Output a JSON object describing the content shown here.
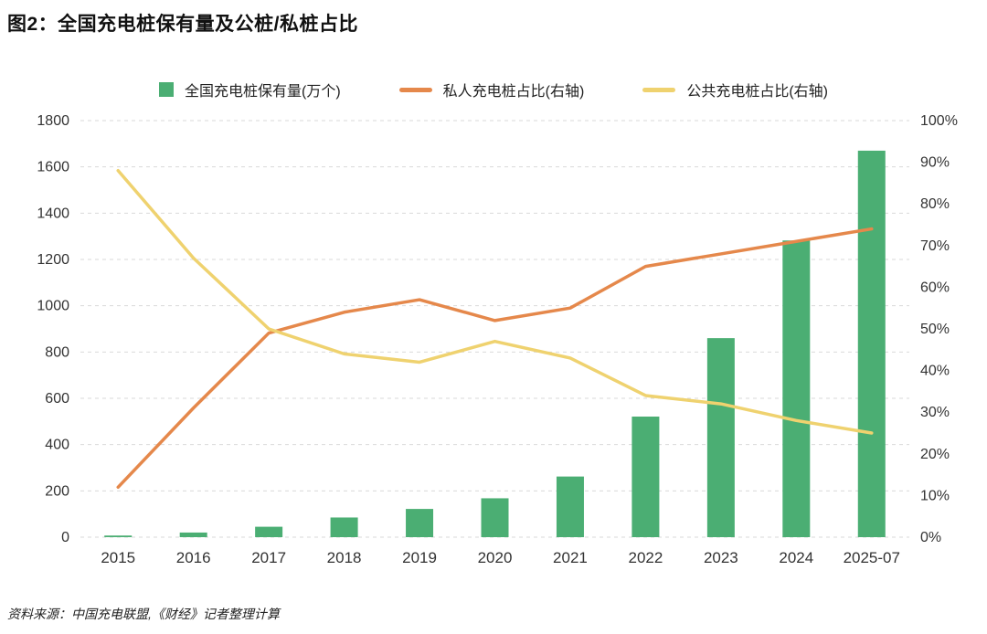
{
  "title": "图2：全国充电桩保有量及公桩/私桩占比",
  "source": "资料来源：中国充电联盟,《财经》记者整理计算",
  "colors": {
    "bar": "#4BAE73",
    "private_line": "#E5884B",
    "public_line": "#EFD26F",
    "grid": "#D9D9D9",
    "axis_text": "#333333",
    "title_text": "#111111"
  },
  "legend": [
    {
      "label": "全国充电桩保有量(万个)",
      "marker": "square",
      "color_key": "bar"
    },
    {
      "label": "私人充电桩占比(右轴)",
      "marker": "line",
      "color_key": "private_line"
    },
    {
      "label": "公共充电桩占比(右轴)",
      "marker": "line",
      "color_key": "public_line"
    }
  ],
  "chart_data": {
    "type": "bar+line",
    "title": "全国充电桩保有量及公桩/私桩占比",
    "categories": [
      "2015",
      "2016",
      "2017",
      "2018",
      "2019",
      "2020",
      "2021",
      "2022",
      "2023",
      "2024",
      "2025-07"
    ],
    "series": [
      {
        "name": "全国充电桩保有量(万个)",
        "type": "bar",
        "axis": "left",
        "values": [
          7,
          20,
          45,
          85,
          122,
          168,
          262,
          521,
          860,
          1282,
          1670
        ]
      },
      {
        "name": "私人充电桩占比(右轴)",
        "type": "line",
        "axis": "right",
        "values": [
          12,
          31,
          49,
          54,
          57,
          52,
          55,
          65,
          68,
          71,
          74
        ]
      },
      {
        "name": "公共充电桩占比(右轴)",
        "type": "line",
        "axis": "right",
        "values": [
          88,
          67,
          50,
          44,
          42,
          47,
          43,
          34,
          32,
          28,
          25
        ]
      }
    ],
    "left_axis": {
      "min": 0,
      "max": 1800,
      "step": 200,
      "ticks": [
        "0",
        "200",
        "400",
        "600",
        "800",
        "1000",
        "1200",
        "1400",
        "1600",
        "1800"
      ]
    },
    "right_axis": {
      "min": 0,
      "max": 100,
      "step": 10,
      "ticks": [
        "0%",
        "10%",
        "20%",
        "30%",
        "40%",
        "50%",
        "60%",
        "70%",
        "80%",
        "90%",
        "100%"
      ]
    },
    "grid": "horizontal-dashed",
    "legend_position": "top"
  }
}
